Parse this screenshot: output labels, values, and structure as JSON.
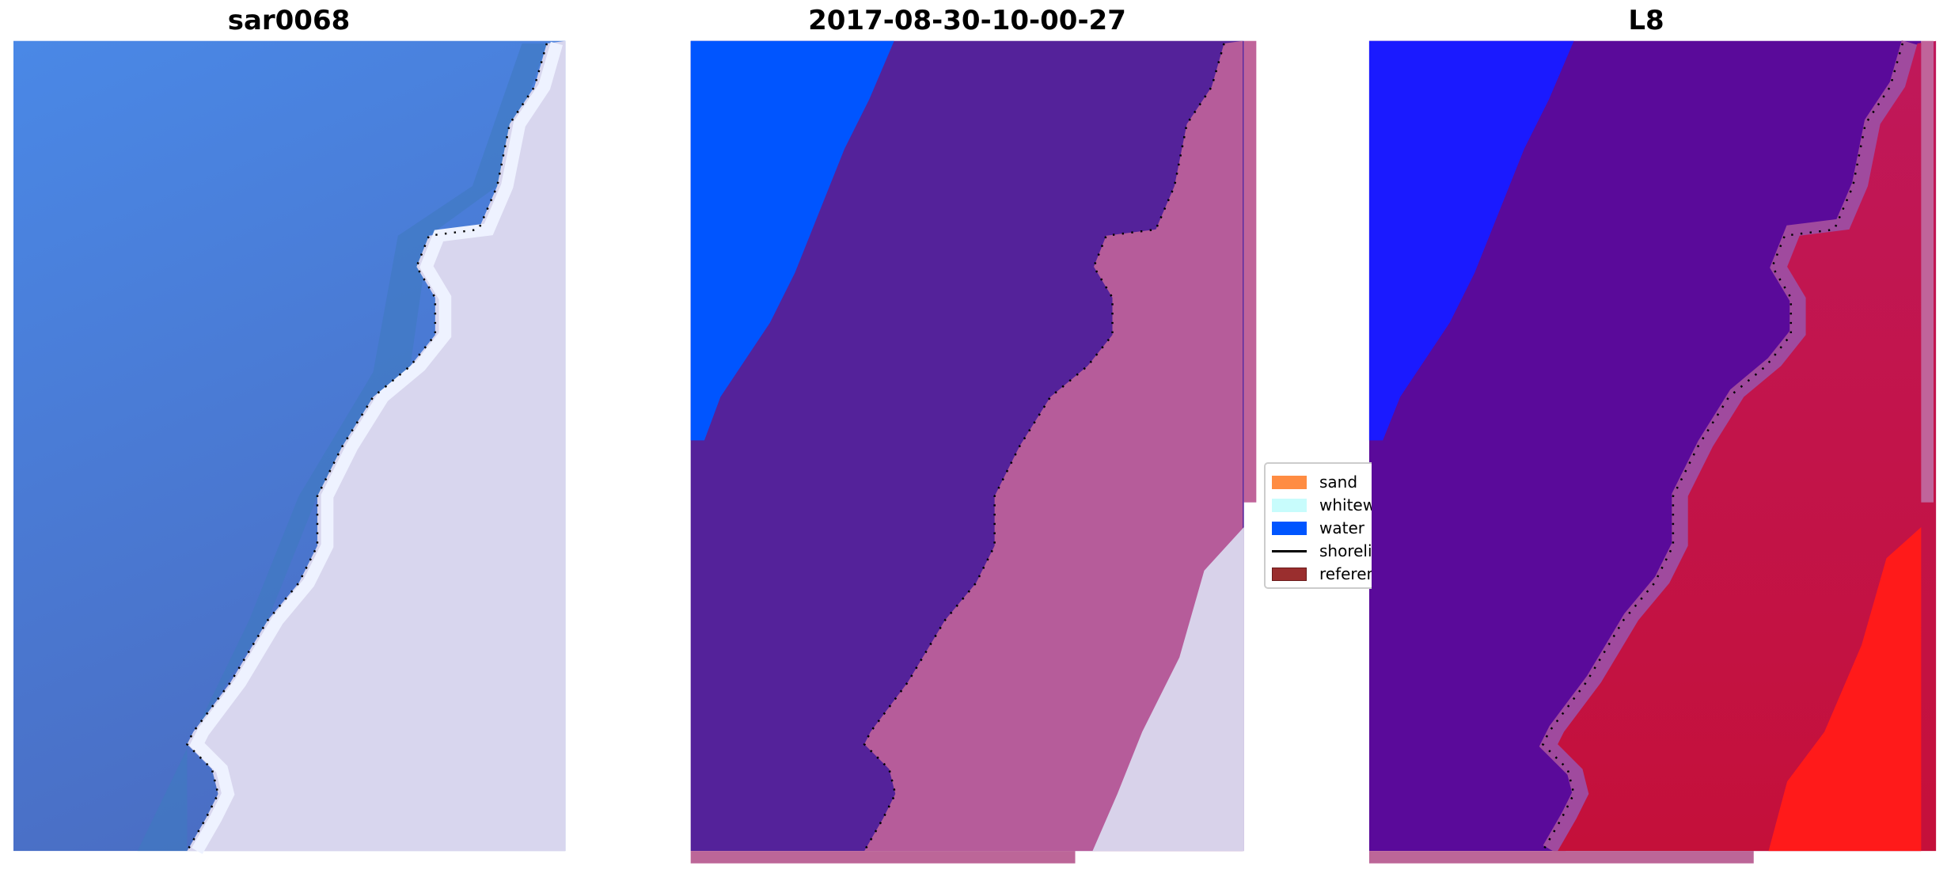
{
  "panels": [
    {
      "title": "sar0068"
    },
    {
      "title": "2017-08-30-10-00-27"
    },
    {
      "title": "L8"
    }
  ],
  "legend": {
    "items": [
      {
        "label": "sand",
        "color": "#ff8c42"
      },
      {
        "label": "whitewater",
        "color": "#c8fcfc"
      },
      {
        "label": "water",
        "color": "#0055ff"
      },
      {
        "label": "shoreline",
        "color": "#000000"
      },
      {
        "label": "reference",
        "color": "#9a2e2e"
      }
    ]
  },
  "colors": {
    "sea": "#4a80d8",
    "land": "#d8d6ee",
    "classified_water": "#0055ff",
    "classified_other": "#54229a",
    "classified_land": "#b65c9a",
    "l8_water": "#1a1aff",
    "l8_purple": "#5a0a9a",
    "l8_red": "#c4143c"
  }
}
